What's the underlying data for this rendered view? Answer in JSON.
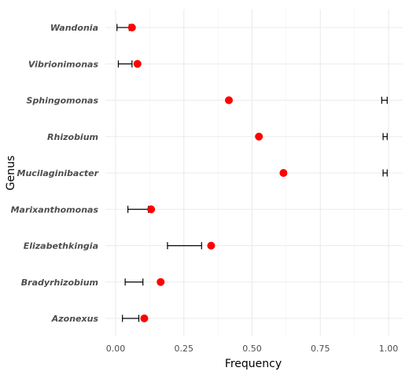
{
  "chart_data": {
    "type": "scatter",
    "title": "",
    "xlabel": "Frequency",
    "ylabel": "Genus",
    "xlim": [
      -0.04,
      1.05
    ],
    "x_ticks": [
      0,
      0.25,
      0.5,
      0.75,
      1.0
    ],
    "x_tick_labels": [
      "0.00",
      "0.25",
      "0.50",
      "0.75",
      "1.00"
    ],
    "grid": true,
    "legend": "none",
    "point_color": "#ff0000",
    "errorbar_color": "#000000",
    "categories": [
      "Wandonia",
      "Vibrionimonas",
      "Sphingomonas",
      "Rhizobium",
      "Mucilaginibacter",
      "Marixanthomonas",
      "Elizabethkingia",
      "Bradyrhizobium",
      "Azonexus"
    ],
    "points": [
      {
        "genus": "Wandonia",
        "value": 0.06,
        "err_low": 0.005,
        "err_high": 0.05
      },
      {
        "genus": "Vibrionimonas",
        "value": 0.08,
        "err_low": 0.01,
        "err_high": 0.06
      },
      {
        "genus": "Sphingomonas",
        "value": 0.415,
        "err_low": 0.975,
        "err_high": 0.995
      },
      {
        "genus": "Rhizobium",
        "value": 0.525,
        "err_low": 0.98,
        "err_high": 0.995
      },
      {
        "genus": "Mucilaginibacter",
        "value": 0.615,
        "err_low": 0.98,
        "err_high": 0.995
      },
      {
        "genus": "Marixanthomonas",
        "value": 0.13,
        "err_low": 0.045,
        "err_high": 0.12
      },
      {
        "genus": "Elizabethkingia",
        "value": 0.35,
        "err_low": 0.19,
        "err_high": 0.315
      },
      {
        "genus": "Bradyrhizobium",
        "value": 0.165,
        "err_low": 0.035,
        "err_high": 0.1
      },
      {
        "genus": "Azonexus",
        "value": 0.105,
        "err_low": 0.025,
        "err_high": 0.085
      }
    ]
  }
}
